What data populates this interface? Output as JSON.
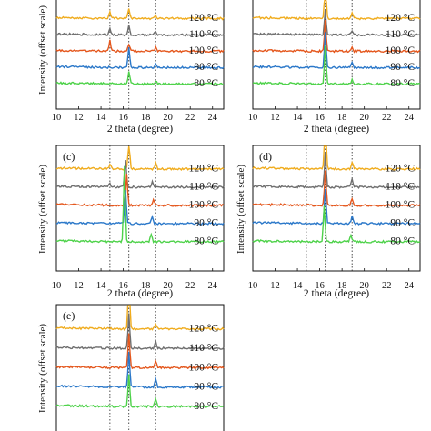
{
  "figure": {
    "ylabel": "Intensity (offset scale)",
    "xlabel": "2 theta (degree)",
    "guide_lines": [
      14.8,
      16.5,
      18.9
    ]
  },
  "series_colors": {
    "120 °C": "#f0ac1e",
    "110 °C": "#6f6f6f",
    "100 °C": "#e4571d",
    "90 °C": "#2b78c9",
    "80 °C": "#4ed24a"
  },
  "chart_data": [
    {
      "type": "line",
      "panel": "a",
      "letter_visible": false,
      "xlabel": "2 theta (degree)",
      "ylabel": "Intensity (offset scale)",
      "xlim": [
        10,
        25
      ],
      "xticks": [
        10,
        12,
        14,
        16,
        18,
        20,
        22,
        24
      ],
      "temperatures": [
        "120 °C",
        "110 °C",
        "100 °C",
        "90 °C",
        "80 °C"
      ],
      "peaks": {
        "120 °C": [
          [
            14.8,
            8
          ],
          [
            16.5,
            12
          ],
          [
            18.9,
            4
          ]
        ],
        "110 °C": [
          [
            14.8,
            8
          ],
          [
            16.5,
            10
          ],
          [
            18.9,
            4
          ]
        ],
        "100 °C": [
          [
            14.8,
            12
          ],
          [
            16.5,
            8
          ],
          [
            18.9,
            4
          ]
        ],
        "90 °C": [
          [
            16.5,
            22
          ],
          [
            18.9,
            5
          ]
        ],
        "80 °C": [
          [
            16.5,
            14
          ],
          [
            18.9,
            4
          ]
        ]
      }
    },
    {
      "type": "line",
      "panel": "b",
      "letter_visible": false,
      "xlabel": "2 theta (degree)",
      "ylabel": "",
      "xlim": [
        10,
        25
      ],
      "xticks": [
        10,
        12,
        14,
        16,
        18,
        20,
        22,
        24
      ],
      "temperatures": [
        "120 °C",
        "110 °C",
        "100 °C",
        "90 °C",
        "80 °C"
      ],
      "peaks": {
        "120 °C": [
          [
            16.5,
            40
          ],
          [
            18.9,
            6
          ]
        ],
        "110 °C": [
          [
            16.5,
            28
          ],
          [
            18.9,
            5
          ]
        ],
        "100 °C": [
          [
            16.5,
            34
          ],
          [
            18.9,
            5
          ]
        ],
        "90 °C": [
          [
            16.5,
            40
          ],
          [
            18.9,
            5
          ]
        ],
        "80 °C": [
          [
            16.5,
            42
          ],
          [
            18.9,
            4
          ]
        ]
      }
    },
    {
      "type": "line",
      "panel": "c",
      "letter_visible": true,
      "xlabel": "2 theta (degree)",
      "ylabel": "Intensity (offset scale)",
      "xlim": [
        10,
        25
      ],
      "xticks": [
        10,
        12,
        14,
        16,
        18,
        20,
        22,
        24
      ],
      "temperatures": [
        "120 °C",
        "110 °C",
        "100 °C",
        "90 °C",
        "80 °C"
      ],
      "peaks": {
        "120 °C": [
          [
            14.8,
            5
          ],
          [
            16.5,
            32
          ],
          [
            18.9,
            6
          ]
        ],
        "110 °C": [
          [
            14.8,
            4
          ],
          [
            16.2,
            30
          ],
          [
            18.6,
            6
          ]
        ],
        "100 °C": [
          [
            16.3,
            34
          ],
          [
            18.7,
            7
          ]
        ],
        "90 °C": [
          [
            16.2,
            36
          ],
          [
            18.6,
            8
          ]
        ],
        "80 °C": [
          [
            16.1,
            82
          ],
          [
            18.5,
            8
          ]
        ]
      }
    },
    {
      "type": "line",
      "panel": "d",
      "letter_visible": true,
      "xlabel": "2 theta (degree)",
      "ylabel": "Intensity (offset scale)",
      "xlim": [
        10,
        25
      ],
      "xticks": [
        10,
        12,
        14,
        16,
        18,
        20,
        22,
        24
      ],
      "temperatures": [
        "120 °C",
        "110 °C",
        "100 °C",
        "90 °C",
        "80 °C"
      ],
      "peaks": {
        "120 °C": [
          [
            16.5,
            100
          ],
          [
            18.9,
            8
          ]
        ],
        "110 °C": [
          [
            16.5,
            38
          ],
          [
            18.9,
            8
          ]
        ],
        "100 °C": [
          [
            16.5,
            38
          ],
          [
            18.9,
            8
          ]
        ],
        "90 °C": [
          [
            16.5,
            38
          ],
          [
            18.9,
            8
          ]
        ],
        "80 °C": [
          [
            16.4,
            40
          ],
          [
            18.8,
            7
          ]
        ]
      }
    },
    {
      "type": "line",
      "panel": "e",
      "letter_visible": true,
      "xlabel": "",
      "ylabel": "Intensity (offset scale)",
      "xlim": [
        10,
        25
      ],
      "xticks": [],
      "temperatures": [
        "120 °C",
        "110 °C",
        "100 °C",
        "90 °C",
        "80 °C"
      ],
      "peaks": {
        "120 °C": [
          [
            16.5,
            60
          ],
          [
            18.9,
            6
          ]
        ],
        "110 °C": [
          [
            16.5,
            38
          ],
          [
            18.9,
            8
          ]
        ],
        "100 °C": [
          [
            16.5,
            38
          ],
          [
            18.9,
            8
          ]
        ],
        "90 °C": [
          [
            16.5,
            38
          ],
          [
            18.9,
            8
          ]
        ],
        "80 °C": [
          [
            16.5,
            36
          ],
          [
            18.9,
            8
          ]
        ]
      }
    }
  ]
}
